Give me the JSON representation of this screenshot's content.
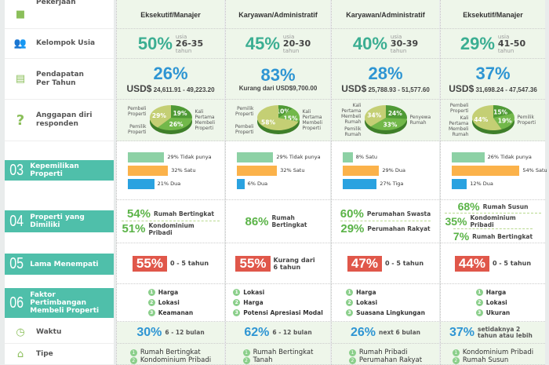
{
  "labels": {
    "pekerjaan": "Pekerjaan",
    "usia": "Kelompok Usia",
    "pendapatan": "Pendapatan Per Tahun",
    "anggapan": "Anggapan diri responden",
    "waktu": "Waktu",
    "tipe": "Tipe",
    "sections": [
      {
        "num": "03",
        "title": "Kepemilikan Properti"
      },
      {
        "num": "04",
        "title": "Properti yang Dimiliki"
      },
      {
        "num": "05",
        "title": "Lama Menempati"
      },
      {
        "num": "06",
        "title": "Faktor Pertimbangan Membeli Properti"
      }
    ],
    "usia_pre": "usia",
    "usia_post": "tahun",
    "currency": "USD$"
  },
  "colors": {
    "teal": "#4fbfaa",
    "pie_dark": "#4f9a35",
    "pie_mid": "#72b84a",
    "pie_light": "#c4cf74",
    "bar_green": "#8dd1a5",
    "bar_orange": "#fbb24a",
    "bar_blue": "#2aa2e0",
    "red": "#e0574a"
  },
  "columns": [
    {
      "pekerjaan": "Eksekutif/Manajer",
      "usia": {
        "pct": "50%",
        "range": "26-35"
      },
      "pendapatan": {
        "pct": "26%",
        "range": "24,611.91 - 49,223.20"
      },
      "pie": [
        {
          "label": "Pembeli Properti",
          "value": 19
        },
        {
          "label": "Pemilik Properti",
          "value": 26
        },
        {
          "label": "Kali Pertama Membeli Properti",
          "value": 29
        }
      ],
      "kepemilikan": [
        {
          "value": 29,
          "label": "29% Tidak punya"
        },
        {
          "value": 32,
          "label": "32% Satu"
        },
        {
          "value": 21,
          "label": "21% Dua"
        }
      ],
      "properti": [
        {
          "pct": "54%",
          "label": "Rumah Bertingkat"
        },
        {
          "pct": "51%",
          "label": "Kondominium Pribadi"
        }
      ],
      "lama": {
        "pct": "55%",
        "label": "0 - 5 tahun"
      },
      "faktor": [
        "Harga",
        "Lokasi",
        "Keamanan"
      ],
      "waktu": {
        "pct": "30%",
        "label": "6 - 12 bulan"
      },
      "tipe": [
        "Rumah Bertingkat",
        "Kondominium Pribadi"
      ]
    },
    {
      "pekerjaan": "Karyawan/Administratif",
      "usia": {
        "pct": "45%",
        "range": "20-30"
      },
      "pendapatan": {
        "pct": "83%",
        "range": "Kurang dari USD$9,700.00"
      },
      "pie": [
        {
          "label": "Pemilik Properti",
          "value": 10
        },
        {
          "label": "Pembeli Properti",
          "value": 15
        },
        {
          "label": "Kali Pertama Membeli Properti",
          "value": 58
        }
      ],
      "kepemilikan": [
        {
          "value": 29,
          "label": "29% Tidak punya"
        },
        {
          "value": 32,
          "label": "32% Satu"
        },
        {
          "value": 6,
          "label": "6% Dua"
        }
      ],
      "properti": [
        {
          "pct": "86%",
          "label": "Rumah Bertingkat"
        }
      ],
      "lama": {
        "pct": "55%",
        "label": "Kurang dari 6 tahun"
      },
      "faktor": [
        "Lokasi",
        "Harga",
        "Potensi Apresiasi Modal"
      ],
      "waktu": {
        "pct": "62%",
        "label": "6 - 12 bulan"
      },
      "tipe": [
        "Rumah Bertingkat",
        "Tanah"
      ]
    },
    {
      "pekerjaan": "Karyawan/Administratif",
      "usia": {
        "pct": "40%",
        "range": "30-39"
      },
      "pendapatan": {
        "pct": "28%",
        "range": "25,788.93 - 51,577.60"
      },
      "pie": [
        {
          "label": "Kali Pertama Membeli Rumah",
          "value": 24
        },
        {
          "label": "Pemilik Rumah",
          "value": 33
        },
        {
          "label": "Penyewa Rumah",
          "value": 34
        }
      ],
      "kepemilikan": [
        {
          "value": 8,
          "label": "8% Satu"
        },
        {
          "value": 29,
          "label": "29% Dua"
        },
        {
          "value": 27,
          "label": "27% Tiga"
        }
      ],
      "properti": [
        {
          "pct": "60%",
          "label": "Perumahan Swasta"
        },
        {
          "pct": "29%",
          "label": "Perumahan Rakyat"
        }
      ],
      "lama": {
        "pct": "47%",
        "label": "0 - 5 tahun"
      },
      "faktor": [
        "Harga",
        "Lokasi",
        "Suasana Lingkungan"
      ],
      "waktu": {
        "pct": "26%",
        "label": "next 6 bulan"
      },
      "tipe": [
        "Rumah Pribadi",
        "Perumahan Rakyat"
      ]
    },
    {
      "pekerjaan": "Eksekutif/Manajer",
      "usia": {
        "pct": "29%",
        "range": "41-50"
      },
      "pendapatan": {
        "pct": "37%",
        "range": "31,698.24 - 47,547.36"
      },
      "pie": [
        {
          "label": "Pembeli Properti",
          "value": 15
        },
        {
          "label": "Kali Pertama Membeli Rumah",
          "value": 19
        },
        {
          "label": "Pemilik Properti",
          "value": 44
        }
      ],
      "kepemilikan": [
        {
          "value": 26,
          "label": "26% Tidak punya"
        },
        {
          "value": 54,
          "label": "54% Satu"
        },
        {
          "value": 12,
          "label": "12% Dua"
        }
      ],
      "properti": [
        {
          "pct": "68%",
          "label": "Rumah Susun"
        },
        {
          "pct": "35%",
          "label": "Kondominium Pribadi"
        },
        {
          "pct": "7%",
          "label": "Rumah Bertingkat"
        }
      ],
      "lama": {
        "pct": "44%",
        "label": "0 - 5 tahun"
      },
      "faktor": [
        "Harga",
        "Lokasi",
        "Ukuran"
      ],
      "waktu": {
        "pct": "37%",
        "label": "setidaknya 2 tahun atau lebih"
      },
      "tipe": [
        "Kondominium Pribadi",
        "Rumah Susun"
      ]
    }
  ]
}
